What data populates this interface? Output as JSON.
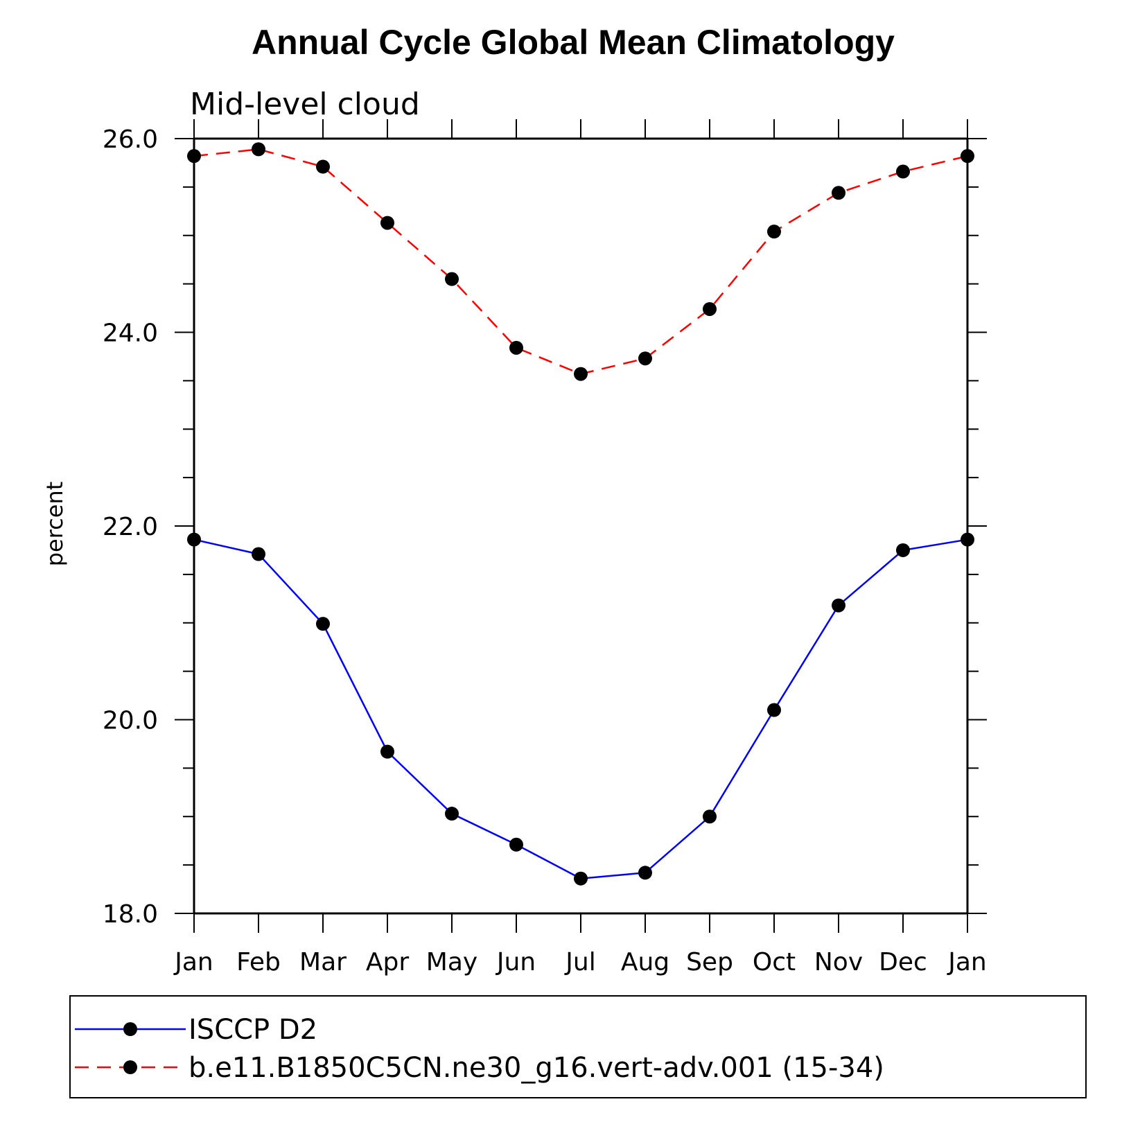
{
  "chart_data": {
    "type": "line",
    "title": "Annual Cycle Global Mean Climatology",
    "subtitle": "Mid-level cloud",
    "xlabel": "",
    "ylabel": "percent",
    "categories": [
      "Jan",
      "Feb",
      "Mar",
      "Apr",
      "May",
      "Jun",
      "Jul",
      "Aug",
      "Sep",
      "Oct",
      "Nov",
      "Dec",
      "Jan"
    ],
    "ylim": [
      18.0,
      26.0
    ],
    "yticks": [
      "18.0",
      "20.0",
      "22.0",
      "24.0",
      "26.0"
    ],
    "grid": false,
    "legend_position": "bottom",
    "series": [
      {
        "name": "ISCCP D2",
        "color": "#0000ff",
        "dash": "solid",
        "marker": "filled-circle",
        "values": [
          21.86,
          21.71,
          20.99,
          19.67,
          19.03,
          18.71,
          18.36,
          18.42,
          19.0,
          20.1,
          21.18,
          21.75,
          21.86
        ]
      },
      {
        "name": "b.e11.B1850C5CN.ne30_g16.vert-adv.001 (15-34)",
        "color": "#ff0000",
        "dash": "dashed",
        "marker": "filled-circle",
        "values": [
          25.82,
          25.89,
          25.71,
          25.13,
          24.55,
          23.84,
          23.57,
          23.73,
          24.24,
          25.04,
          25.44,
          25.66,
          25.82
        ]
      }
    ]
  }
}
